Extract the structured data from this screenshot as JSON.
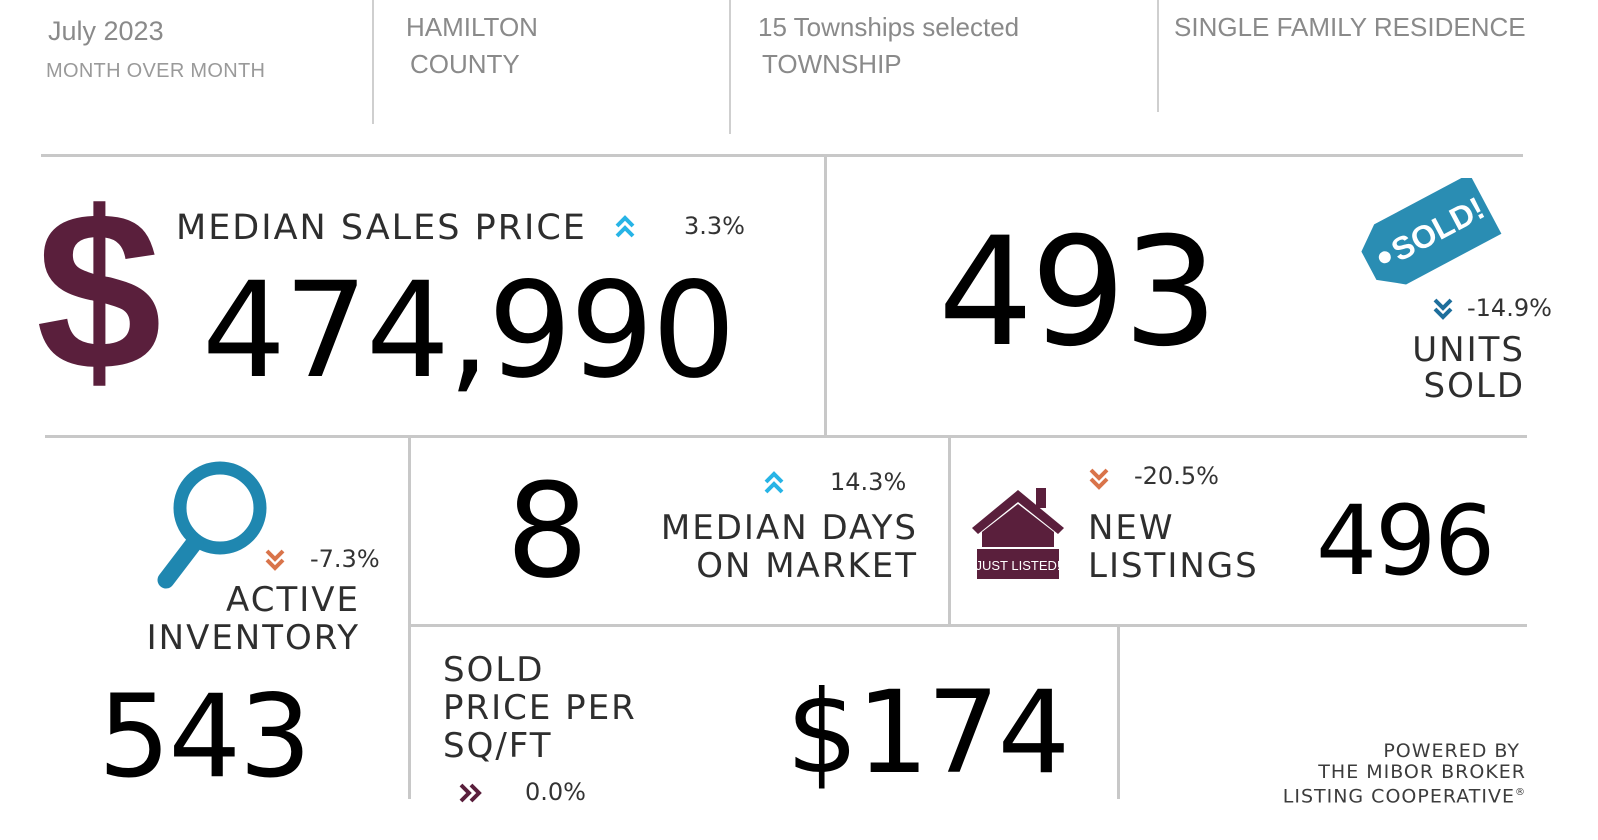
{
  "header": {
    "period": "July 2023",
    "comparison": "MONTH OVER MONTH",
    "county_line1": "HAMILTON",
    "county_line2": "COUNTY",
    "area_line1": "15 Townships selected",
    "area_line2": "TOWNSHIP",
    "property_type": "SINGLE FAMILY RESIDENCE"
  },
  "median_sales_price": {
    "label": "MEDIAN SALES PRICE",
    "value": "474,990",
    "change": "3.3%",
    "direction": "up",
    "icon": "dollar-sign-icon",
    "icon_glyph": "$"
  },
  "units_sold": {
    "value": "493",
    "change": "-14.9%",
    "direction": "down",
    "label_line1": "UNITS",
    "label_line2": "SOLD",
    "icon": "sold-tag-icon",
    "tag_text": "SOLD!"
  },
  "active_inventory": {
    "label_line1": "ACTIVE",
    "label_line2": "INVENTORY",
    "value": "543",
    "change": "-7.3%",
    "direction": "down",
    "icon": "magnifier-icon"
  },
  "median_days_on_market": {
    "value": "8",
    "change": "14.3%",
    "direction": "up",
    "label_line1": "MEDIAN DAYS",
    "label_line2": "ON MARKET"
  },
  "new_listings": {
    "label_line1": "NEW",
    "label_line2": "LISTINGS",
    "value": "496",
    "change": "-20.5%",
    "direction": "down",
    "icon": "house-just-listed-icon",
    "sign_text": "JUST LISTED!"
  },
  "sold_price_per_sqft": {
    "label_line1": "SOLD",
    "label_line2": "PRICE PER",
    "label_line3": "SQ/FT",
    "value": "$174",
    "change": "0.0%",
    "direction": "flat"
  },
  "footer": {
    "line1": "POWERED BY",
    "line2": "THE MIBOR BROKER",
    "line3": "LISTING COOPERATIVE",
    "mark": "®"
  },
  "colors": {
    "brand_maroon": "#5a1f3c",
    "up_arrow": "#27b4e6",
    "down_arrow_blue": "#1d6e9c",
    "down_arrow_orange": "#d9744a",
    "flat_arrow": "#5a1f3c",
    "sold_tag": "#2a8db3",
    "magnifier": "#1f87b0",
    "divider": "#c8c8c8",
    "header_text": "#8a8a8a"
  }
}
